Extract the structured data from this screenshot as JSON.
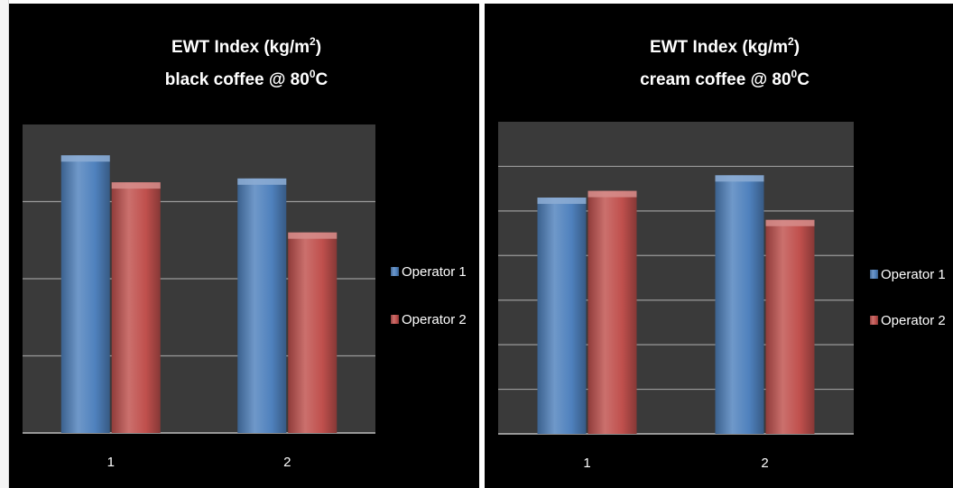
{
  "chart_data": [
    {
      "type": "bar",
      "title_main": "EWT Index (kg/m",
      "title_main_sup": "2",
      "title_main_end": ")",
      "subtitle_main": "black coffee @ 80",
      "subtitle_sup": "0",
      "subtitle_end": "C",
      "categories": [
        "1",
        "2"
      ],
      "series": [
        {
          "name": "Operator 1",
          "values": [
            3.6,
            3.3
          ],
          "color": "#4f81bd"
        },
        {
          "name": "Operator 2",
          "values": [
            3.25,
            2.6
          ],
          "color": "#c0504d"
        }
      ],
      "ylim": [
        0,
        4
      ],
      "grid": true,
      "legend": "right",
      "background": "#000000",
      "plot_background": "#3a3a3a"
    },
    {
      "type": "bar",
      "title_main": "EWT Index (kg/m",
      "title_main_sup": "2",
      "title_main_end": ")",
      "subtitle_main": "cream coffee @ 80",
      "subtitle_sup": "0",
      "subtitle_end": "C",
      "categories": [
        "1",
        "2"
      ],
      "series": [
        {
          "name": "Operator 1",
          "values": [
            5.3,
            5.8
          ],
          "color": "#4f81bd"
        },
        {
          "name": "Operator 2",
          "values": [
            5.45,
            4.8
          ],
          "color": "#c0504d"
        }
      ],
      "ylim": [
        0,
        7
      ],
      "grid": true,
      "legend": "right",
      "background": "#000000",
      "plot_background": "#3a3a3a"
    }
  ]
}
